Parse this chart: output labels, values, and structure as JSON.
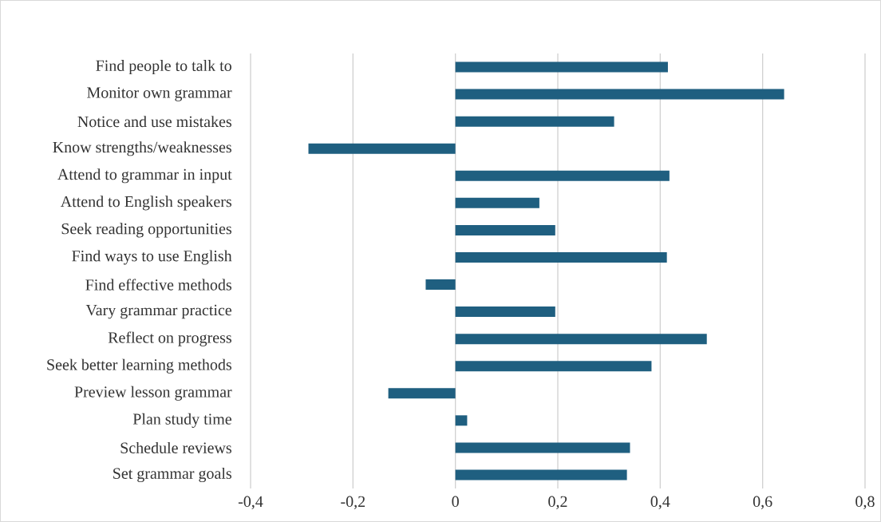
{
  "chart_data": {
    "type": "bar",
    "orientation": "horizontal",
    "categories": [
      "Find people to talk to",
      "Monitor own grammar",
      "Notice and use mistakes",
      "Know strengths/weaknesses",
      "Attend to grammar in input",
      "Attend to English speakers",
      "Seek reading opportunities",
      "Find ways to use English",
      "Find effective methods",
      "Vary grammar practice",
      "Reflect on progress",
      "Seek better learning methods",
      "Preview lesson grammar",
      "Plan study time",
      "Schedule reviews",
      "Set grammar goals"
    ],
    "values": [
      0.415,
      0.642,
      0.31,
      -0.287,
      0.418,
      0.164,
      0.195,
      0.413,
      -0.058,
      0.195,
      0.491,
      0.383,
      -0.131,
      0.023,
      0.341,
      0.335
    ],
    "color": "#1f5f80",
    "xlim": [
      -0.4,
      0.8
    ],
    "xticks": [
      {
        "value": -0.4,
        "label": "-0,4"
      },
      {
        "value": -0.2,
        "label": "-0,2"
      },
      {
        "value": 0,
        "label": "0"
      },
      {
        "value": 0.2,
        "label": "0,2"
      },
      {
        "value": 0.4,
        "label": "0,4"
      },
      {
        "value": 0.6,
        "label": "0,6"
      },
      {
        "value": 0.8,
        "label": "0,8"
      }
    ],
    "grid": "x"
  }
}
